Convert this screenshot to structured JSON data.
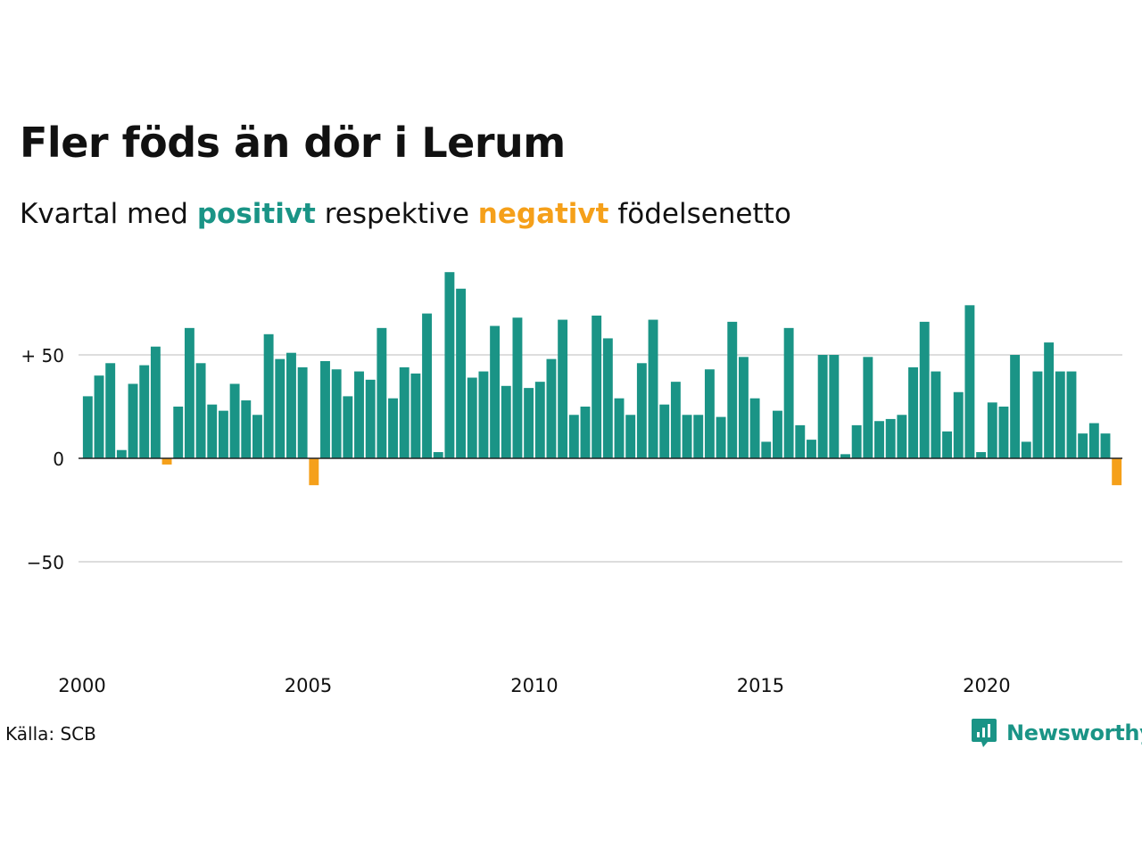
{
  "title": "Fler föds än dör i Lerum",
  "subtitle": {
    "prefix": "Kvartal med ",
    "positive_word": "positivt",
    "middle": " respektive ",
    "negative_word": "negativt",
    "suffix": " födelsenetto"
  },
  "source": "Källa: SCB",
  "brand": "Newsworthy",
  "colors": {
    "positive": "#1a9486",
    "negative": "#f5a01a",
    "grid": "#dddddd",
    "zero_line": "#222222"
  },
  "chart_data": {
    "type": "bar",
    "ylim": [
      -80,
      93
    ],
    "y_ticks": [
      {
        "value": 50,
        "label": "+ 50"
      },
      {
        "value": 0,
        "label": "0"
      },
      {
        "value": -50,
        "label": "−50"
      }
    ],
    "x_ticks": [
      {
        "year": 2000,
        "label": "2000"
      },
      {
        "year": 2005,
        "label": "2005"
      },
      {
        "year": 2010,
        "label": "2010"
      },
      {
        "year": 2015,
        "label": "2015"
      },
      {
        "year": 2020,
        "label": "2020"
      }
    ],
    "grid": true,
    "legend": "none",
    "start": "2000 Q1",
    "values": [
      30,
      40,
      46,
      4,
      36,
      45,
      54,
      -3,
      25,
      63,
      46,
      26,
      23,
      36,
      28,
      21,
      60,
      48,
      51,
      44,
      -13,
      47,
      43,
      30,
      42,
      38,
      63,
      29,
      44,
      41,
      70,
      3,
      90,
      82,
      39,
      42,
      64,
      35,
      68,
      34,
      37,
      48,
      67,
      21,
      25,
      69,
      58,
      29,
      21,
      46,
      67,
      26,
      37,
      21,
      21,
      43,
      20,
      66,
      49,
      29,
      8,
      23,
      63,
      16,
      9,
      50,
      50,
      2,
      16,
      49,
      18,
      19,
      21,
      44,
      66,
      42,
      13,
      32,
      74,
      3,
      27,
      25,
      50,
      8,
      42,
      56,
      42,
      42,
      12,
      17,
      12,
      -13
    ]
  }
}
